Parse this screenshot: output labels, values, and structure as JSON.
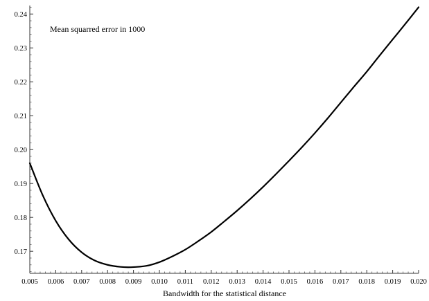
{
  "chart_data": {
    "type": "line",
    "title": "",
    "annotation": "Mean squarred error in 1000",
    "xlabel": "Bandwidth for the statistical distance",
    "ylabel": "",
    "xlim": [
      0.005,
      0.02
    ],
    "ylim": [
      0.1635,
      0.2425
    ],
    "x_ticks": [
      "0.005",
      "0.006",
      "0.007",
      "0.008",
      "0.009",
      "0.010",
      "0.011",
      "0.012",
      "0.013",
      "0.014",
      "0.015",
      "0.016",
      "0.017",
      "0.018",
      "0.019",
      "0.020"
    ],
    "y_ticks": [
      "0.17",
      "0.18",
      "0.19",
      "0.20",
      "0.21",
      "0.22",
      "0.23",
      "0.24"
    ],
    "grid": false,
    "series": [
      {
        "color": "#000000",
        "x": [
          0.005,
          0.0055,
          0.006,
          0.0065,
          0.007,
          0.0075,
          0.008,
          0.0085,
          0.0089,
          0.0095,
          0.01,
          0.0105,
          0.011,
          0.0115,
          0.012,
          0.0125,
          0.013,
          0.0135,
          0.014,
          0.0145,
          0.015,
          0.0155,
          0.016,
          0.0165,
          0.017,
          0.0175,
          0.018,
          0.0185,
          0.019,
          0.0195,
          0.02
        ],
        "y": [
          0.196,
          0.1865,
          0.179,
          0.1735,
          0.1697,
          0.1673,
          0.166,
          0.1654,
          0.1653,
          0.1657,
          0.1668,
          0.1685,
          0.1705,
          0.173,
          0.1757,
          0.1788,
          0.182,
          0.1854,
          0.189,
          0.1928,
          0.1967,
          0.2007,
          0.2049,
          0.2093,
          0.2139,
          0.2185,
          0.223,
          0.2278,
          0.2325,
          0.2372,
          0.242
        ]
      }
    ]
  }
}
